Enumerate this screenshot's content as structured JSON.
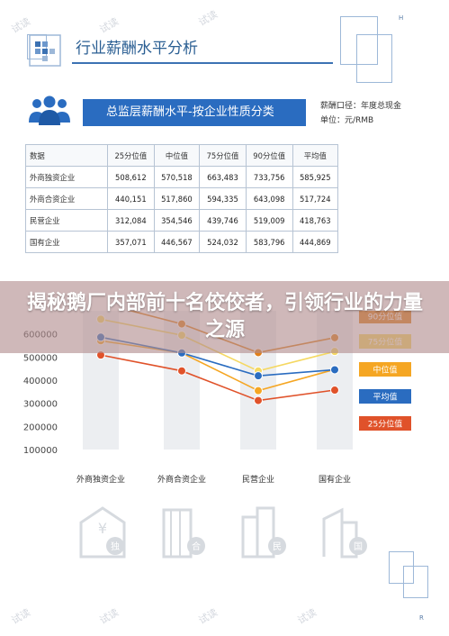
{
  "header": {
    "title": "行业薪酬水平分析"
  },
  "page_marks": {
    "top": "H",
    "bottom": "R"
  },
  "section": {
    "banner_title": "总监层薪酬水平-按企业性质分类",
    "meta_line1": "薪酬口径：年度总现金",
    "meta_line2": "单位：元/RMB"
  },
  "table": {
    "headers": [
      "数据",
      "25分位值",
      "中位值",
      "75分位值",
      "90分位值",
      "平均值"
    ],
    "rows": [
      [
        "外商独资企业",
        "508,612",
        "570,518",
        "663,483",
        "733,756",
        "585,925"
      ],
      [
        "外商合资企业",
        "440,151",
        "517,860",
        "594,335",
        "643,098",
        "517,724"
      ],
      [
        "民营企业",
        "312,084",
        "354,546",
        "439,746",
        "519,009",
        "418,763"
      ],
      [
        "国有企业",
        "357,071",
        "446,567",
        "524,032",
        "583,796",
        "444,869"
      ]
    ]
  },
  "overlay": {
    "headline": "揭秘鹅厂内部前十名佼佼者，引领行业的力量之源"
  },
  "watermark_text": "试读",
  "building_labels": [
    "独",
    "合",
    "民",
    "国"
  ],
  "colors": {
    "p25": "#e0522a",
    "median": "#f5a623",
    "p75": "#f5d862",
    "p90": "#e07f1a",
    "avg": "#2a6cc0"
  },
  "chart_data": {
    "type": "line",
    "categories": [
      "外商独资企业",
      "外商合资企业",
      "民营企业",
      "国有企业"
    ],
    "y_ticks": [
      "600000",
      "500000",
      "400000",
      "300000",
      "200000",
      "100000"
    ],
    "ylim": [
      100000,
      700000
    ],
    "series": [
      {
        "name": "90分位值",
        "values": [
          733756,
          643098,
          519009,
          583796
        ],
        "color": "#e07f1a"
      },
      {
        "name": "75分位值",
        "values": [
          663483,
          594335,
          439746,
          524032
        ],
        "color": "#f5d862"
      },
      {
        "name": "中位值",
        "values": [
          570518,
          517860,
          354546,
          446567
        ],
        "color": "#f5a623"
      },
      {
        "name": "平均值",
        "values": [
          585925,
          517724,
          418763,
          444869
        ],
        "color": "#2a6cc0"
      },
      {
        "name": "25分位值",
        "values": [
          508612,
          440151,
          312084,
          357071
        ],
        "color": "#e0522a"
      }
    ]
  }
}
